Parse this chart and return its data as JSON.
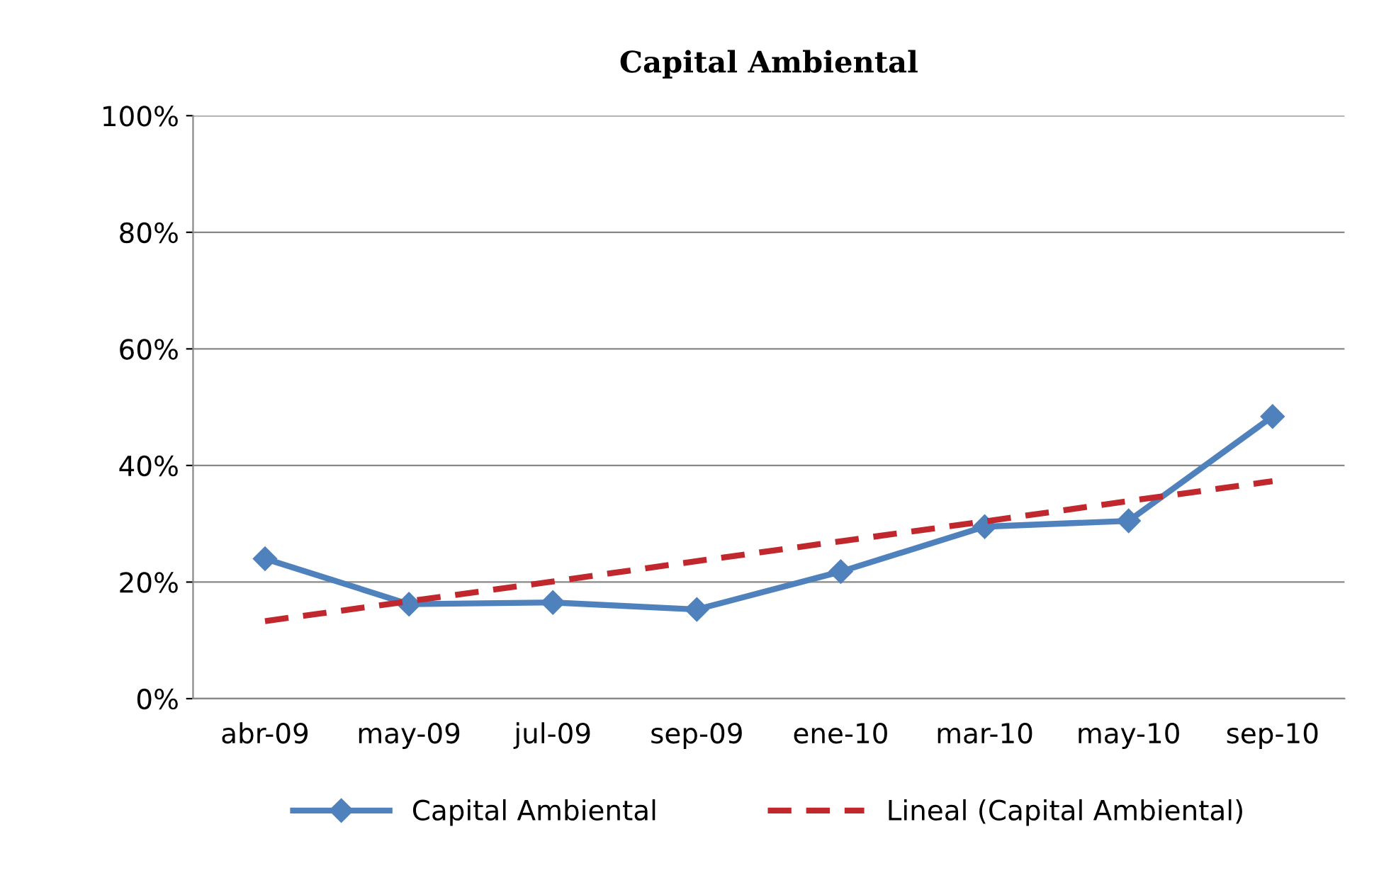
{
  "chart_data": {
    "type": "line",
    "title": "Capital Ambiental",
    "categories": [
      "abr-09",
      "may-09",
      "jul-09",
      "sep-09",
      "ene-10",
      "mar-10",
      "may-10",
      "sep-10"
    ],
    "series": [
      {
        "name": "Capital Ambiental",
        "color": "#4f81bd",
        "values": [
          24,
          16.2,
          16.5,
          15.3,
          21.8,
          29.5,
          30.5,
          48.4
        ],
        "marker": "diamond",
        "line_style": "solid"
      },
      {
        "name": "Lineal (Capital Ambiental)",
        "color": "#c0282d",
        "values": [
          13.3,
          16.7,
          20.1,
          23.6,
          27.0,
          30.4,
          33.9,
          37.3
        ],
        "marker": "none",
        "line_style": "dashed"
      }
    ],
    "ylim": [
      0,
      100
    ],
    "yticks": [
      {
        "value": 0,
        "label": "0%"
      },
      {
        "value": 20,
        "label": "20%"
      },
      {
        "value": 40,
        "label": "40%"
      },
      {
        "value": 60,
        "label": "60%"
      },
      {
        "value": 80,
        "label": "80%"
      },
      {
        "value": 100,
        "label": "100%"
      }
    ],
    "grid": "y",
    "legend": "bottom"
  }
}
